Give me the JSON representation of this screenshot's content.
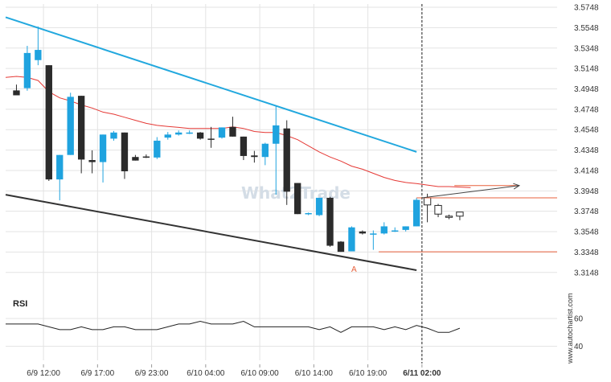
{
  "watermark": "What2Trade",
  "attribution": "www.autochartist.com",
  "rsi_label": "RSI",
  "pattern_point_label": "A",
  "colors": {
    "up_candle": "#1fa3df",
    "down_candle": "#2b2b2b",
    "moving_average": "#e53935",
    "resistance_line": "#22a8de",
    "support_line": "#333333",
    "level_lines": "#e8613c",
    "rsi_line": "#222222",
    "grid": "#e3e3e3"
  },
  "chart_data": {
    "type": "candlestick",
    "price_axis": {
      "range": [
        3.302,
        3.578
      ],
      "ticks": [
        "3.5748",
        "3.5548",
        "3.5348",
        "3.5148",
        "3.4948",
        "3.4748",
        "3.4548",
        "3.4348",
        "3.4148",
        "3.3948",
        "3.3748",
        "3.3548",
        "3.3348",
        "3.3148"
      ]
    },
    "time_axis": {
      "slot_range": [
        -1,
        50
      ],
      "ticks": [
        {
          "label": "6/9 12:00",
          "slot": 2.5
        },
        {
          "label": "6/9 17:00",
          "slot": 7.5
        },
        {
          "label": "6/9 23:00",
          "slot": 12.5
        },
        {
          "label": "6/10 04:00",
          "slot": 17.5
        },
        {
          "label": "6/10 09:00",
          "slot": 22.5
        },
        {
          "label": "6/10 14:00",
          "slot": 27.5
        },
        {
          "label": "6/10 19:00",
          "slot": 32.5
        },
        {
          "label": "6/11 02:00",
          "slot": 37.5,
          "bold": true
        }
      ],
      "current_time_slot": 37.5
    },
    "candles": [
      {
        "o": 3.4933,
        "h": 3.499,
        "l": 3.489,
        "c": 3.4885
      },
      {
        "o": 3.4955,
        "h": 3.537,
        "l": 3.493,
        "c": 3.53
      },
      {
        "o": 3.523,
        "h": 3.556,
        "l": 3.518,
        "c": 3.533
      },
      {
        "o": 3.518,
        "h": 3.518,
        "l": 3.4045,
        "c": 3.406
      },
      {
        "o": 3.406,
        "h": 3.43,
        "l": 3.3855,
        "c": 3.43
      },
      {
        "o": 3.43,
        "h": 3.491,
        "l": 3.43,
        "c": 3.487
      },
      {
        "o": 3.488,
        "h": 3.488,
        "l": 3.412,
        "c": 3.4255
      },
      {
        "o": 3.425,
        "h": 3.4345,
        "l": 3.412,
        "c": 3.423
      },
      {
        "o": 3.423,
        "h": 3.45,
        "l": 3.403,
        "c": 3.45
      },
      {
        "o": 3.446,
        "h": 3.4535,
        "l": 3.444,
        "c": 3.452
      },
      {
        "o": 3.452,
        "h": 3.452,
        "l": 3.4065,
        "c": 3.414
      },
      {
        "o": 3.428,
        "h": 3.43,
        "l": 3.4245,
        "c": 3.4245
      },
      {
        "o": 3.4285,
        "h": 3.4305,
        "l": 3.427,
        "c": 3.4275
      },
      {
        "o": 3.4275,
        "h": 3.4475,
        "l": 3.426,
        "c": 3.444
      },
      {
        "o": 3.447,
        "h": 3.4525,
        "l": 3.445,
        "c": 3.45
      },
      {
        "o": 3.45,
        "h": 3.454,
        "l": 3.449,
        "c": 3.452
      },
      {
        "o": 3.452,
        "h": 3.454,
        "l": 3.4505,
        "c": 3.452
      },
      {
        "o": 3.452,
        "h": 3.4525,
        "l": 3.445,
        "c": 3.446
      },
      {
        "o": 3.446,
        "h": 3.4575,
        "l": 3.437,
        "c": 3.445
      },
      {
        "o": 3.447,
        "h": 3.457,
        "l": 3.446,
        "c": 3.457
      },
      {
        "o": 3.4575,
        "h": 3.4675,
        "l": 3.448,
        "c": 3.448
      },
      {
        "o": 3.448,
        "h": 3.448,
        "l": 3.425,
        "c": 3.429
      },
      {
        "o": 3.4295,
        "h": 3.434,
        "l": 3.4225,
        "c": 3.428
      },
      {
        "o": 3.428,
        "h": 3.442,
        "l": 3.42,
        "c": 3.441
      },
      {
        "o": 3.441,
        "h": 3.4785,
        "l": 3.391,
        "c": 3.459
      },
      {
        "o": 3.456,
        "h": 3.464,
        "l": 3.381,
        "c": 3.394
      },
      {
        "o": 3.4025,
        "h": 3.4025,
        "l": 3.372,
        "c": 3.372
      },
      {
        "o": 3.372,
        "h": 3.3735,
        "l": 3.371,
        "c": 3.373
      },
      {
        "o": 3.371,
        "h": 3.388,
        "l": 3.37,
        "c": 3.388
      },
      {
        "o": 3.388,
        "h": 3.389,
        "l": 3.34,
        "c": 3.341
      },
      {
        "o": 3.345,
        "h": 3.3455,
        "l": 3.335,
        "c": 3.335
      },
      {
        "o": 3.3355,
        "h": 3.36,
        "l": 3.3355,
        "c": 3.359
      },
      {
        "o": 3.355,
        "h": 3.356,
        "l": 3.352,
        "c": 3.353
      },
      {
        "o": 3.3525,
        "h": 3.356,
        "l": 3.337,
        "c": 3.353
      },
      {
        "o": 3.353,
        "h": 3.364,
        "l": 3.352,
        "c": 3.36
      },
      {
        "o": 3.356,
        "h": 3.359,
        "l": 3.3545,
        "c": 3.356
      },
      {
        "o": 3.3565,
        "h": 3.36,
        "l": 3.355,
        "c": 3.36
      },
      {
        "o": 3.36,
        "h": 3.388,
        "l": 3.36,
        "c": 3.386
      }
    ],
    "forecast_candles": [
      {
        "o": 3.381,
        "h": 3.392,
        "l": 3.364,
        "c": 3.388
      },
      {
        "o": 3.3805,
        "h": 3.382,
        "l": 3.369,
        "c": 3.372
      },
      {
        "o": 3.369,
        "h": 3.3715,
        "l": 3.367,
        "c": 3.37
      },
      {
        "o": 3.37,
        "h": 3.374,
        "l": 3.366,
        "c": 3.374
      }
    ],
    "moving_average": [
      [
        -1,
        3.506
      ],
      [
        0,
        3.507
      ],
      [
        1,
        3.506
      ],
      [
        2,
        3.503
      ],
      [
        3,
        3.492
      ],
      [
        4,
        3.486
      ],
      [
        5,
        3.483
      ],
      [
        6,
        3.479
      ],
      [
        7,
        3.476
      ],
      [
        8,
        3.472
      ],
      [
        9,
        3.47
      ],
      [
        10,
        3.467
      ],
      [
        11,
        3.464
      ],
      [
        12,
        3.461
      ],
      [
        13,
        3.459
      ],
      [
        14,
        3.458
      ],
      [
        15,
        3.457
      ],
      [
        16,
        3.456
      ],
      [
        17,
        3.456
      ],
      [
        18,
        3.456
      ],
      [
        19,
        3.456
      ],
      [
        20,
        3.4575
      ],
      [
        21,
        3.456
      ],
      [
        22,
        3.453
      ],
      [
        23,
        3.452
      ],
      [
        24,
        3.452
      ],
      [
        25,
        3.449
      ],
      [
        26,
        3.445
      ],
      [
        27,
        3.439
      ],
      [
        28,
        3.433
      ],
      [
        29,
        3.428
      ],
      [
        30,
        3.424
      ],
      [
        31,
        3.419
      ],
      [
        32,
        3.416
      ],
      [
        33,
        3.412
      ],
      [
        34,
        3.408
      ],
      [
        35,
        3.405
      ],
      [
        36,
        3.403
      ],
      [
        37,
        3.402
      ],
      [
        38,
        3.4005
      ],
      [
        39,
        3.399
      ],
      [
        40,
        3.399
      ],
      [
        41,
        3.3985
      ],
      [
        42,
        3.398
      ]
    ],
    "resistance_line": [
      [
        -1,
        3.565
      ],
      [
        37,
        3.433
      ]
    ],
    "support_line": [
      [
        -1,
        3.391
      ],
      [
        37,
        3.317
      ]
    ],
    "level_lines": [
      {
        "price": 3.388,
        "from_slot": 37,
        "to_slot": 50
      },
      {
        "price": 3.335,
        "from_slot": 33.5,
        "to_slot": 50
      }
    ],
    "projection_arrow": {
      "from": [
        37.5,
        3.388
      ],
      "to": [
        46.5,
        3.4
      ]
    },
    "target_line": {
      "price": 3.4,
      "from_slot": 40.5,
      "to_slot": 46.5
    },
    "pattern_point": {
      "slot": 29.5,
      "price": 3.33
    },
    "rsi": {
      "title": "RSI",
      "range": [
        30,
        75
      ],
      "ticks": [
        "60",
        "40"
      ],
      "values": [
        [
          -1,
          56
        ],
        [
          0,
          56
        ],
        [
          1,
          56
        ],
        [
          2,
          56
        ],
        [
          3,
          54
        ],
        [
          4,
          52
        ],
        [
          5,
          52
        ],
        [
          6,
          54
        ],
        [
          7,
          52
        ],
        [
          8,
          52
        ],
        [
          9,
          54
        ],
        [
          10,
          54
        ],
        [
          11,
          52
        ],
        [
          12,
          52
        ],
        [
          13,
          52
        ],
        [
          14,
          54
        ],
        [
          15,
          56
        ],
        [
          16,
          56
        ],
        [
          17,
          58
        ],
        [
          18,
          56
        ],
        [
          19,
          56
        ],
        [
          20,
          56
        ],
        [
          21,
          58
        ],
        [
          22,
          54
        ],
        [
          23,
          54
        ],
        [
          24,
          54
        ],
        [
          25,
          54
        ],
        [
          26,
          54
        ],
        [
          27,
          54
        ],
        [
          28,
          52
        ],
        [
          29,
          54
        ],
        [
          30,
          50
        ],
        [
          31,
          54
        ],
        [
          32,
          54
        ],
        [
          33,
          54
        ],
        [
          34,
          52
        ],
        [
          35,
          54
        ],
        [
          36,
          52
        ],
        [
          37,
          55
        ],
        [
          38,
          53
        ],
        [
          39,
          50
        ],
        [
          40,
          50
        ],
        [
          41,
          53
        ]
      ]
    }
  }
}
